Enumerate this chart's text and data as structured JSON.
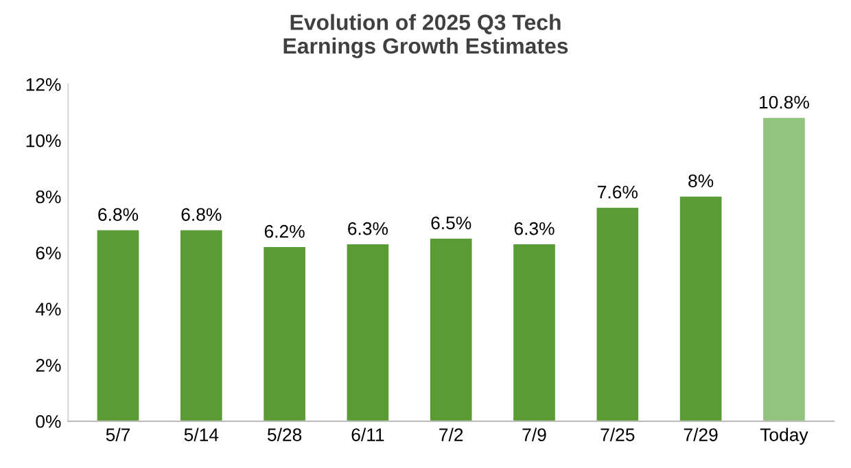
{
  "chart_data": {
    "type": "bar",
    "title": "Evolution of 2025 Q3 Tech\nEarnings Growth Estimates",
    "categories": [
      "5/7",
      "5/14",
      "5/28",
      "6/11",
      "7/2",
      "7/9",
      "7/25",
      "7/29",
      "Today"
    ],
    "values": [
      6.8,
      6.8,
      6.2,
      6.3,
      6.5,
      6.3,
      7.6,
      8,
      10.8
    ],
    "colors": [
      "#5b9b35",
      "#5b9b35",
      "#5b9b35",
      "#5b9b35",
      "#5b9b35",
      "#5b9b35",
      "#5b9b35",
      "#5b9b35",
      "#93c47d"
    ],
    "value_labels": [
      "6.8%",
      "6.8%",
      "6.2%",
      "6.3%",
      "6.5%",
      "6.3%",
      "7.6%",
      "8%",
      "10.8%"
    ],
    "ylim": [
      0,
      12
    ],
    "yticks": [
      {
        "value": 0,
        "label": "0%"
      },
      {
        "value": 2,
        "label": "2%"
      },
      {
        "value": 4,
        "label": "4%"
      },
      {
        "value": 6,
        "label": "6%"
      },
      {
        "value": 8,
        "label": "8%"
      },
      {
        "value": 10,
        "label": "10%"
      },
      {
        "value": 12,
        "label": "12%"
      }
    ],
    "grid": false
  }
}
